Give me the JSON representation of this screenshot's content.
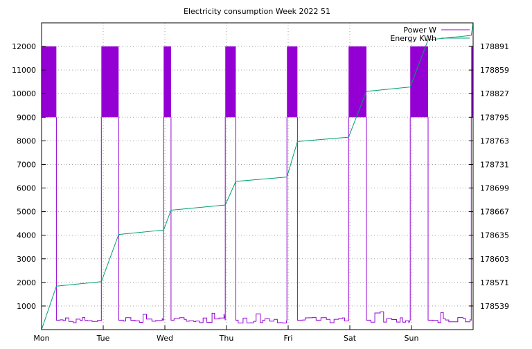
{
  "chart_data": {
    "type": "line",
    "title": "Electricity consumption Week 2022 51",
    "x_ticks": [
      "Mon",
      "Tue",
      "Wed",
      "Thu",
      "Fri",
      "Sat",
      "Sun"
    ],
    "x_range_days": [
      0,
      7
    ],
    "y_left_ticks": [
      1000,
      2000,
      3000,
      4000,
      5000,
      6000,
      7000,
      8000,
      9000,
      10000,
      11000,
      12000
    ],
    "y_left_range": [
      0,
      13000
    ],
    "y_right_ticks": [
      178539,
      178571,
      178603,
      178635,
      178667,
      178699,
      178731,
      178763,
      178795,
      178827,
      178859,
      178891
    ],
    "y_right_range": [
      178507,
      178923
    ],
    "grid": true,
    "legend_position": "top-right",
    "series": [
      {
        "name": "Power W",
        "axis": "left",
        "color": "#9400D3",
        "high_intervals": [
          {
            "start": 0.0,
            "end": 0.24
          },
          {
            "start": 0.97,
            "end": 1.25
          },
          {
            "start": 1.98,
            "end": 2.1
          },
          {
            "start": 2.98,
            "end": 3.15
          },
          {
            "start": 3.98,
            "end": 4.15
          },
          {
            "start": 4.98,
            "end": 5.27
          },
          {
            "start": 5.98,
            "end": 6.27
          },
          {
            "start": 6.97,
            "end": 7.0
          }
        ],
        "high_band": [
          9000,
          12000
        ],
        "base_level": 400
      },
      {
        "name": "Energy KWh",
        "axis": "right",
        "color": "#009E73",
        "points": [
          [
            0.0,
            178507
          ],
          [
            0.24,
            178566
          ],
          [
            0.97,
            178572
          ],
          [
            1.25,
            178636
          ],
          [
            1.98,
            178642
          ],
          [
            2.1,
            178669
          ],
          [
            2.98,
            178676
          ],
          [
            3.15,
            178708
          ],
          [
            3.98,
            178714
          ],
          [
            4.15,
            178762
          ],
          [
            4.98,
            178768
          ],
          [
            5.27,
            178830
          ],
          [
            5.98,
            178836
          ],
          [
            6.27,
            178900
          ],
          [
            6.97,
            178906
          ],
          [
            7.0,
            178923
          ]
        ]
      }
    ]
  }
}
